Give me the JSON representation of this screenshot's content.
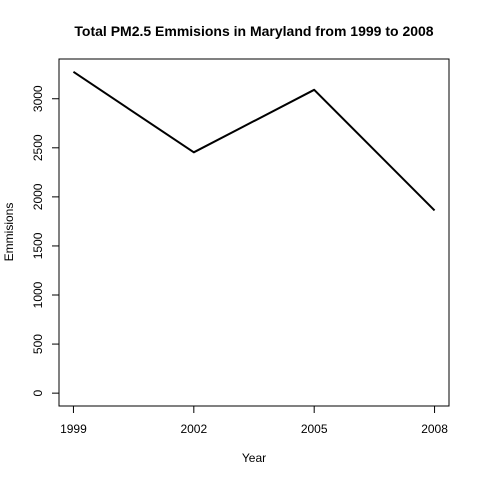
{
  "chart_data": {
    "type": "line",
    "title": "Total PM2.5 Emmisions in Maryland from 1999 to 2008",
    "xlabel": "Year",
    "ylabel": "Emmisions",
    "x": [
      1999,
      2002,
      2005,
      2008
    ],
    "series": [
      {
        "values": [
          3274,
          2454,
          3091,
          1862
        ]
      }
    ],
    "xticks": [
      1999,
      2002,
      2005,
      2008
    ],
    "xtick_labels": [
      "1999",
      "2002",
      "2005",
      "2008"
    ],
    "yticks": [
      0,
      500,
      1000,
      1500,
      2000,
      2500,
      3000
    ],
    "ytick_labels": [
      "0",
      "500",
      "1000",
      "1500",
      "2000",
      "2500",
      "3000"
    ],
    "xlim": [
      1998.64,
      2008.36
    ],
    "ylim": [
      -131,
      3405
    ],
    "grid": false,
    "line_color": "#000000"
  }
}
